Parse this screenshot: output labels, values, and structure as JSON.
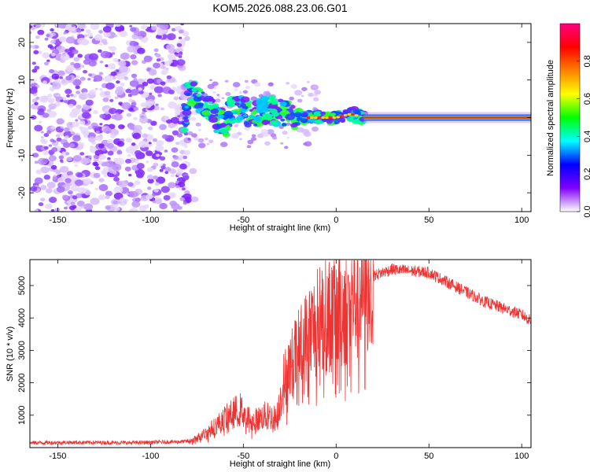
{
  "title": "KOM5.2026.088.23.06.G01",
  "chart_data": [
    {
      "type": "heatmap",
      "xlabel": "Height of straight line (km)",
      "ylabel": "Frequency (Hz)",
      "xlim": [
        -165,
        105
      ],
      "ylim": [
        -25,
        25
      ],
      "xticks": [
        -150,
        -100,
        -50,
        0,
        50,
        100
      ],
      "yticks": [
        -20,
        -10,
        0,
        10,
        20
      ],
      "colorbar": {
        "label": "Normalized spectral amplitude",
        "range": [
          0,
          1
        ],
        "ticks": [
          "0.0",
          "0.2",
          "0.4",
          "0.6",
          "0.8"
        ],
        "stops": [
          "#ffffff",
          "#8000ff",
          "#0000ff",
          "#00ffff",
          "#00ff00",
          "#ffff00",
          "#ff8000",
          "#ff0000",
          "#ff0080"
        ]
      },
      "ridge": [
        {
          "x": -80,
          "y": 7
        },
        {
          "x": -75,
          "y": 6
        },
        {
          "x": -70,
          "y": 3
        },
        {
          "x": -65,
          "y": 0
        },
        {
          "x": -60,
          "y": -2
        },
        {
          "x": -55,
          "y": 3
        },
        {
          "x": -45,
          "y": 1
        },
        {
          "x": -35,
          "y": 2
        },
        {
          "x": -25,
          "y": 1
        },
        {
          "x": -15,
          "y": 0
        },
        {
          "x": 0,
          "y": 0
        },
        {
          "x": 8,
          "y": 1
        },
        {
          "x": 15,
          "y": 0
        },
        {
          "x": 105,
          "y": 0
        }
      ]
    },
    {
      "type": "line",
      "xlabel": "Height of straight line (km)",
      "ylabel": "SNR (10 * v/v)",
      "xlim": [
        -165,
        105
      ],
      "ylim": [
        0,
        5800
      ],
      "xticks": [
        -150,
        -100,
        -50,
        0,
        50,
        100
      ],
      "yticks": [
        1000,
        2000,
        3000,
        4000,
        5000
      ],
      "color": "#ee3333",
      "x": [
        -165,
        -140,
        -110,
        -85,
        -78,
        -70,
        -60,
        -52,
        -45,
        -38,
        -32,
        -28,
        -22,
        -15,
        -8,
        -2,
        5,
        12,
        20,
        30,
        40,
        50,
        60,
        70,
        80,
        90,
        100,
        105
      ],
      "values": [
        150,
        160,
        150,
        180,
        200,
        450,
        900,
        1200,
        800,
        1000,
        900,
        2100,
        2800,
        3500,
        4000,
        4100,
        4400,
        4700,
        5300,
        5500,
        5450,
        5400,
        5100,
        4800,
        4500,
        4300,
        4100,
        3900
      ]
    }
  ]
}
